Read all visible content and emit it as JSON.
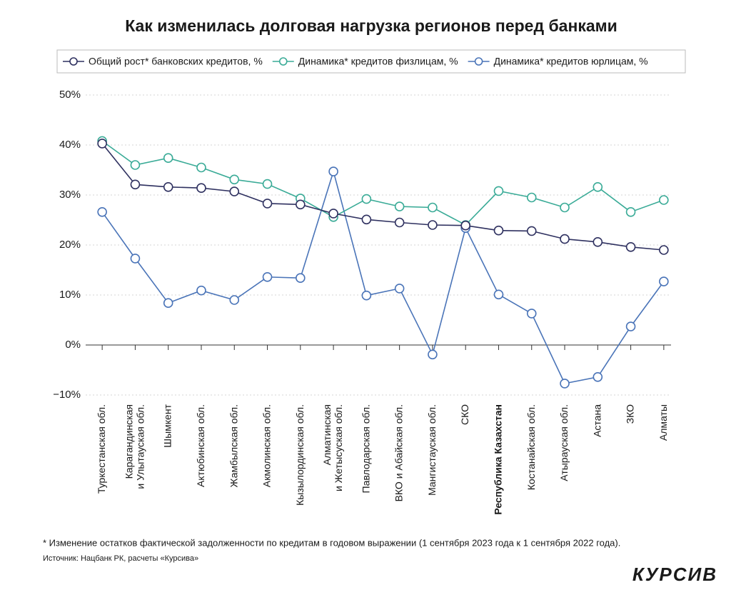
{
  "chart_data": {
    "type": "line",
    "title": "Как изменилась долговая нагрузка регионов перед банками",
    "categories": [
      "Туркестанская обл.",
      "Карагандинская\nи Улытауская обл.",
      "Шымкент",
      "Актюбинская обл.",
      "Жамбылская обл.",
      "Акмолинская обл.",
      "Кызылординская обл.",
      "Алматинская\nи Жетысуская обл.",
      "Павлодарская обл.",
      "ВКО и Абайская обл.",
      "Мангистауская обл.",
      "СКО",
      "Республика Казахстан",
      "Костанайская обл.",
      "Атырауская обл.",
      "Астана",
      "ЗКО",
      "Алматы"
    ],
    "series": [
      {
        "name": "Общий рост* банковских кредитов, %",
        "color": "#2f3160",
        "values": [
          40.3,
          32.1,
          31.6,
          31.4,
          30.7,
          28.3,
          28.1,
          26.3,
          25.1,
          24.5,
          24.0,
          23.9,
          22.9,
          22.8,
          21.2,
          20.6,
          19.6,
          19.0
        ]
      },
      {
        "name": "Динамика* кредитов физлицам, %",
        "color": "#3aab97",
        "values": [
          40.8,
          36.0,
          37.4,
          35.5,
          33.1,
          32.2,
          29.3,
          25.6,
          29.2,
          27.7,
          27.5,
          24.0,
          30.8,
          29.5,
          27.5,
          31.6,
          26.6,
          29.0
        ]
      },
      {
        "name": "Динамика* кредитов юрлицам, %",
        "color": "#4a74b8",
        "values": [
          26.6,
          17.3,
          8.4,
          10.9,
          9.0,
          13.6,
          13.4,
          34.7,
          9.9,
          11.3,
          -1.9,
          23.4,
          10.1,
          6.3,
          -7.7,
          -6.4,
          3.7,
          12.7
        ]
      }
    ],
    "ylim": [
      -10,
      50
    ],
    "yticks": [
      {
        "value": -10,
        "label": "−10%"
      },
      {
        "value": 0,
        "label": "0%"
      },
      {
        "value": 10,
        "label": "10%"
      },
      {
        "value": 20,
        "label": "20%"
      },
      {
        "value": 30,
        "label": "30%"
      },
      {
        "value": 40,
        "label": "40%"
      },
      {
        "value": 50,
        "label": "50%"
      }
    ],
    "grid": true
  },
  "footnote": "* Изменение остатков фактической задолженности по кредитам в годовом выражении (1 сентября 2023 года к 1 сентября 2022 года).",
  "source": "Источник: Нацбанк РК, расчеты «Курсива»",
  "brand": "КУРСИВ"
}
